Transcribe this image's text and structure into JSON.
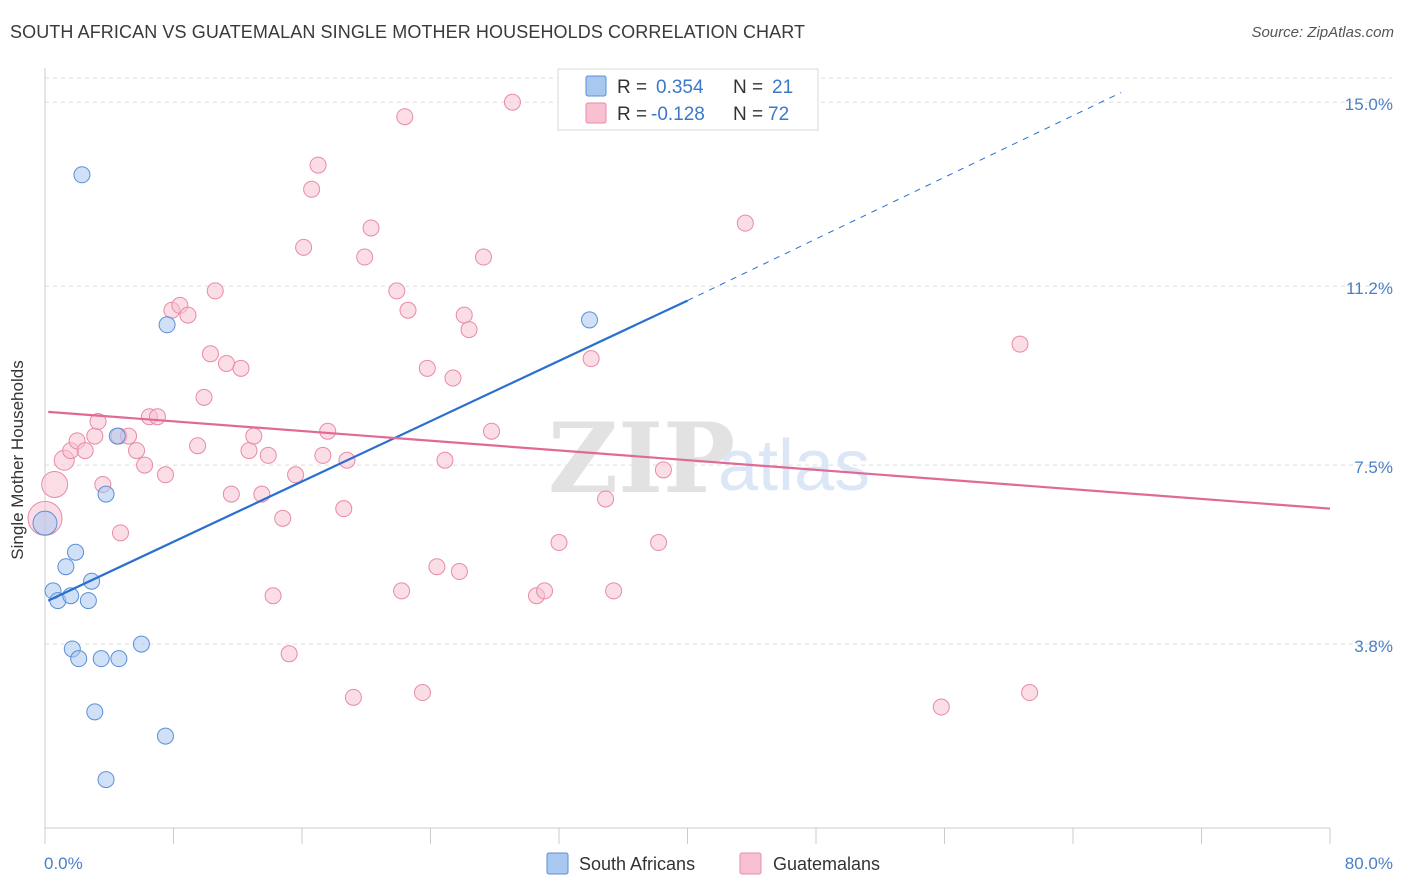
{
  "title": "SOUTH AFRICAN VS GUATEMALAN SINGLE MOTHER HOUSEHOLDS CORRELATION CHART",
  "source": "Source: ZipAtlas.com",
  "watermark": {
    "zip": "ZIP",
    "atlas": "atlas"
  },
  "colors": {
    "south_african_fill": "#a9c8f0",
    "south_african_stroke": "#5b8fd6",
    "south_african_line": "#2a6fcf",
    "guatemalan_fill": "#f7c1d1",
    "guatemalan_stroke": "#e88aa8",
    "guatemalan_line": "#e06a94",
    "grid": "#dddddd",
    "tick_label": "#4a7fc8"
  },
  "legend": {
    "rows": [
      {
        "r_label": "R =",
        "r_value": "0.354",
        "n_label": "N =",
        "n_value": "21"
      },
      {
        "r_label": "R =",
        "r_value": "-0.128",
        "n_label": "N =",
        "n_value": "72"
      }
    ]
  },
  "bottom_legend": [
    "South Africans",
    "Guatemalans"
  ],
  "chart_data": {
    "type": "scatter",
    "title": "SOUTH AFRICAN VS GUATEMALAN SINGLE MOTHER HOUSEHOLDS CORRELATION CHART",
    "xlabel": "",
    "ylabel": "Single Mother Households",
    "xlim": [
      0,
      80
    ],
    "ylim": [
      0,
      15.5
    ],
    "x_tick_labels": [
      "0.0%",
      "80.0%"
    ],
    "y_ticks": [
      3.8,
      7.5,
      11.2,
      15.0
    ],
    "y_tick_labels": [
      "3.8%",
      "7.5%",
      "11.2%",
      "15.0%"
    ],
    "grid": true,
    "legend_position": "top-center",
    "series": [
      {
        "name": "South Africans",
        "r": 0.354,
        "n": 21,
        "trend": {
          "x0": 0.2,
          "y0": 4.7,
          "x1": 40,
          "y1": 10.9,
          "dashed_to_x": 67,
          "dashed_to_y": 15.2
        },
        "points": [
          [
            0.0,
            6.3,
            24
          ],
          [
            0.5,
            4.9,
            16
          ],
          [
            0.8,
            4.7,
            16
          ],
          [
            1.3,
            5.4,
            16
          ],
          [
            1.7,
            3.7,
            16
          ],
          [
            1.6,
            4.8,
            16
          ],
          [
            1.9,
            5.7,
            16
          ],
          [
            2.1,
            3.5,
            16
          ],
          [
            2.3,
            13.5,
            16
          ],
          [
            2.7,
            4.7,
            16
          ],
          [
            2.9,
            5.1,
            16
          ],
          [
            3.1,
            2.4,
            16
          ],
          [
            3.5,
            3.5,
            16
          ],
          [
            3.8,
            1.0,
            16
          ],
          [
            3.8,
            6.9,
            16
          ],
          [
            4.5,
            8.1,
            16
          ],
          [
            4.6,
            3.5,
            16
          ],
          [
            6.0,
            3.8,
            16
          ],
          [
            7.5,
            1.9,
            16
          ],
          [
            7.6,
            10.4,
            16
          ],
          [
            33.9,
            10.5,
            16
          ]
        ]
      },
      {
        "name": "Guatemalans",
        "r": -0.128,
        "n": 72,
        "trend": {
          "x0": 0.2,
          "y0": 8.6,
          "x1": 80,
          "y1": 6.6
        },
        "points": [
          [
            0.0,
            6.4,
            34
          ],
          [
            0.6,
            7.1,
            26
          ],
          [
            1.2,
            7.6,
            20
          ],
          [
            1.6,
            7.8,
            16
          ],
          [
            2.0,
            8.0,
            16
          ],
          [
            2.5,
            7.8,
            16
          ],
          [
            3.1,
            8.1,
            16
          ],
          [
            3.3,
            8.4,
            16
          ],
          [
            3.6,
            7.1,
            16
          ],
          [
            4.6,
            8.1,
            16
          ],
          [
            4.7,
            6.1,
            16
          ],
          [
            5.2,
            8.1,
            16
          ],
          [
            5.7,
            7.8,
            16
          ],
          [
            6.2,
            7.5,
            16
          ],
          [
            6.5,
            8.5,
            16
          ],
          [
            7.0,
            8.5,
            16
          ],
          [
            7.5,
            7.3,
            16
          ],
          [
            7.9,
            10.7,
            16
          ],
          [
            8.4,
            10.8,
            16
          ],
          [
            8.9,
            10.6,
            16
          ],
          [
            9.5,
            7.9,
            16
          ],
          [
            9.9,
            8.9,
            16
          ],
          [
            10.3,
            9.8,
            16
          ],
          [
            10.6,
            11.1,
            16
          ],
          [
            11.3,
            9.6,
            16
          ],
          [
            11.6,
            6.9,
            16
          ],
          [
            12.2,
            9.5,
            16
          ],
          [
            12.7,
            7.8,
            16
          ],
          [
            13.0,
            8.1,
            16
          ],
          [
            13.5,
            6.9,
            16
          ],
          [
            13.9,
            7.7,
            16
          ],
          [
            14.2,
            4.8,
            16
          ],
          [
            14.8,
            6.4,
            16
          ],
          [
            15.2,
            3.6,
            16
          ],
          [
            15.6,
            7.3,
            16
          ],
          [
            16.1,
            12.0,
            16
          ],
          [
            16.6,
            13.2,
            16
          ],
          [
            17.0,
            13.7,
            16
          ],
          [
            17.3,
            7.7,
            16
          ],
          [
            17.6,
            8.2,
            16
          ],
          [
            18.6,
            6.6,
            16
          ],
          [
            18.8,
            7.6,
            16
          ],
          [
            19.2,
            2.7,
            16
          ],
          [
            19.9,
            11.8,
            16
          ],
          [
            20.3,
            12.4,
            16
          ],
          [
            21.9,
            11.1,
            16
          ],
          [
            22.2,
            4.9,
            16
          ],
          [
            22.4,
            14.7,
            16
          ],
          [
            22.6,
            10.7,
            16
          ],
          [
            23.5,
            2.8,
            16
          ],
          [
            23.8,
            9.5,
            16
          ],
          [
            24.4,
            5.4,
            16
          ],
          [
            24.9,
            7.6,
            16
          ],
          [
            25.4,
            9.3,
            16
          ],
          [
            25.8,
            5.3,
            16
          ],
          [
            26.1,
            10.6,
            16
          ],
          [
            26.4,
            10.3,
            16
          ],
          [
            27.3,
            11.8,
            16
          ],
          [
            27.8,
            8.2,
            16
          ],
          [
            29.1,
            15.0,
            16
          ],
          [
            30.6,
            4.8,
            16
          ],
          [
            31.1,
            4.9,
            16
          ],
          [
            32.0,
            5.9,
            16
          ],
          [
            34.0,
            9.7,
            16
          ],
          [
            34.9,
            6.8,
            16
          ],
          [
            35.4,
            4.9,
            16
          ],
          [
            38.2,
            5.9,
            16
          ],
          [
            38.5,
            7.4,
            16
          ],
          [
            43.6,
            12.5,
            16
          ],
          [
            55.8,
            2.5,
            16
          ],
          [
            60.7,
            10.0,
            16
          ],
          [
            61.3,
            2.8,
            16
          ]
        ]
      }
    ]
  }
}
